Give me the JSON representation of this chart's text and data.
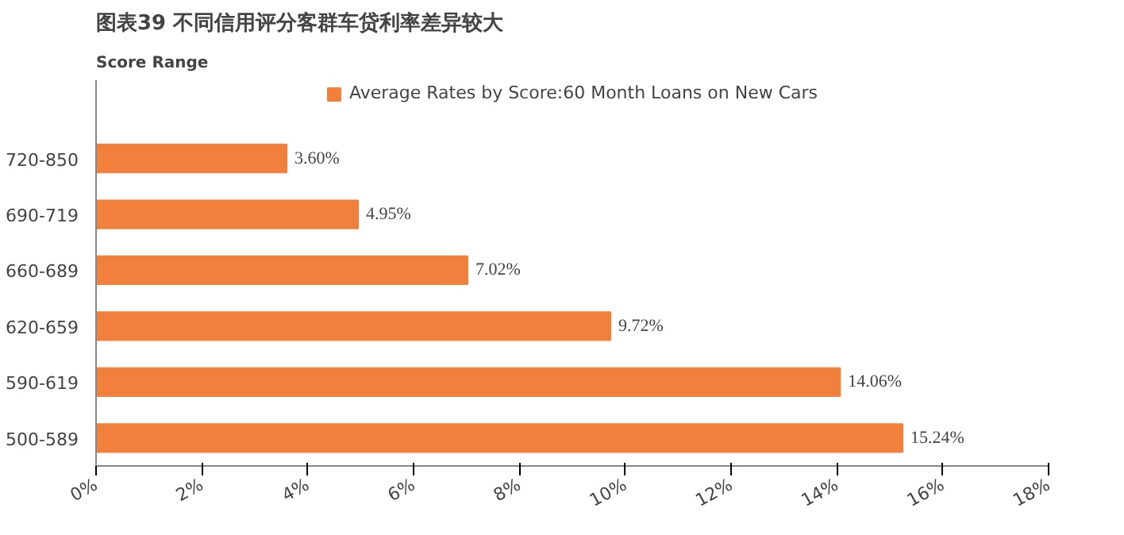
{
  "chart_data": {
    "type": "bar",
    "orientation": "horizontal",
    "title": "图表39   不同信用评分客群车贷利率差异较大",
    "ylabel": "Score Range",
    "categories": [
      "720-850",
      "690-719",
      "660-689",
      "620-659",
      "590-619",
      "500-589"
    ],
    "series": [
      {
        "name": "Average Rates by Score:60 Month Loans on New Cars",
        "color": "#f0803c",
        "values": [
          3.6,
          4.95,
          7.02,
          9.72,
          14.06,
          15.24
        ]
      }
    ],
    "value_labels": [
      "3.60%",
      "4.95%",
      "7.02%",
      "9.72%",
      "14.06%",
      "15.24%"
    ],
    "xlim": [
      0,
      18
    ],
    "xticks": [
      {
        "value": 0,
        "label": "0%"
      },
      {
        "value": 2,
        "label": "2%"
      },
      {
        "value": 4,
        "label": "4%"
      },
      {
        "value": 6,
        "label": "6%"
      },
      {
        "value": 8,
        "label": "8%"
      },
      {
        "value": 10,
        "label": "10%"
      },
      {
        "value": 12,
        "label": "12%"
      },
      {
        "value": 14,
        "label": "14%"
      },
      {
        "value": 16,
        "label": "16%"
      },
      {
        "value": 18,
        "label": "18%"
      }
    ],
    "grid": false,
    "legend": "top"
  }
}
